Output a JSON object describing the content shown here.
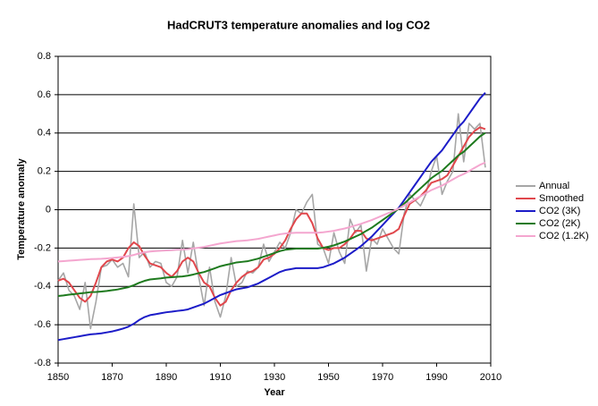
{
  "chart_data": {
    "type": "line",
    "title": "HadCRUT3 temperature anomalies and log CO2",
    "x_label": "Year",
    "y_label": "Temperature anomaly",
    "x": [
      1850,
      1852,
      1854,
      1856,
      1858,
      1860,
      1862,
      1864,
      1866,
      1868,
      1870,
      1872,
      1874,
      1876,
      1878,
      1880,
      1882,
      1884,
      1886,
      1888,
      1890,
      1892,
      1894,
      1896,
      1898,
      1900,
      1902,
      1904,
      1906,
      1908,
      1910,
      1912,
      1914,
      1916,
      1918,
      1920,
      1922,
      1924,
      1926,
      1928,
      1930,
      1932,
      1934,
      1936,
      1938,
      1940,
      1942,
      1944,
      1946,
      1948,
      1950,
      1952,
      1954,
      1956,
      1958,
      1960,
      1962,
      1964,
      1966,
      1968,
      1970,
      1972,
      1974,
      1976,
      1978,
      1980,
      1982,
      1984,
      1986,
      1988,
      1990,
      1992,
      1994,
      1996,
      1998,
      2000,
      2002,
      2004,
      2006,
      2008
    ],
    "series": [
      {
        "name": "Annual",
        "color": "#a6a6a6",
        "values": [
          -0.37,
          -0.33,
          -0.42,
          -0.45,
          -0.52,
          -0.38,
          -0.62,
          -0.48,
          -0.3,
          -0.29,
          -0.26,
          -0.3,
          -0.28,
          -0.35,
          0.03,
          -0.25,
          -0.22,
          -0.3,
          -0.27,
          -0.28,
          -0.38,
          -0.4,
          -0.35,
          -0.16,
          -0.33,
          -0.17,
          -0.35,
          -0.5,
          -0.3,
          -0.48,
          -0.56,
          -0.45,
          -0.25,
          -0.4,
          -0.38,
          -0.32,
          -0.33,
          -0.3,
          -0.18,
          -0.27,
          -0.22,
          -0.17,
          -0.2,
          -0.12,
          0.0,
          -0.02,
          0.04,
          0.08,
          -0.18,
          -0.2,
          -0.28,
          -0.12,
          -0.22,
          -0.28,
          -0.05,
          -0.12,
          -0.08,
          -0.32,
          -0.15,
          -0.18,
          -0.1,
          -0.15,
          -0.2,
          -0.23,
          -0.02,
          0.08,
          0.05,
          0.02,
          0.08,
          0.2,
          0.28,
          0.08,
          0.15,
          0.2,
          0.5,
          0.25,
          0.45,
          0.42,
          0.45,
          0.22
        ]
      },
      {
        "name": "Smoothed",
        "color": "#e0474c",
        "values": [
          -0.37,
          -0.36,
          -0.38,
          -0.42,
          -0.46,
          -0.48,
          -0.45,
          -0.38,
          -0.3,
          -0.27,
          -0.26,
          -0.27,
          -0.25,
          -0.2,
          -0.17,
          -0.19,
          -0.24,
          -0.28,
          -0.29,
          -0.3,
          -0.33,
          -0.35,
          -0.32,
          -0.27,
          -0.25,
          -0.27,
          -0.33,
          -0.38,
          -0.4,
          -0.46,
          -0.5,
          -0.48,
          -0.42,
          -0.38,
          -0.35,
          -0.33,
          -0.32,
          -0.3,
          -0.26,
          -0.25,
          -0.23,
          -0.2,
          -0.16,
          -0.1,
          -0.05,
          -0.02,
          -0.02,
          -0.07,
          -0.15,
          -0.2,
          -0.21,
          -0.2,
          -0.2,
          -0.18,
          -0.15,
          -0.11,
          -0.11,
          -0.15,
          -0.16,
          -0.15,
          -0.14,
          -0.13,
          -0.12,
          -0.1,
          -0.03,
          0.03,
          0.05,
          0.07,
          0.1,
          0.14,
          0.15,
          0.16,
          0.18,
          0.23,
          0.28,
          0.33,
          0.38,
          0.41,
          0.43,
          0.42
        ]
      },
      {
        "name": "CO2 (3K)",
        "color": "#1c1cc8",
        "values": [
          -0.68,
          -0.675,
          -0.67,
          -0.665,
          -0.66,
          -0.655,
          -0.65,
          -0.648,
          -0.645,
          -0.64,
          -0.635,
          -0.628,
          -0.62,
          -0.61,
          -0.595,
          -0.575,
          -0.56,
          -0.55,
          -0.545,
          -0.54,
          -0.535,
          -0.532,
          -0.528,
          -0.525,
          -0.52,
          -0.51,
          -0.5,
          -0.49,
          -0.475,
          -0.46,
          -0.445,
          -0.435,
          -0.425,
          -0.415,
          -0.41,
          -0.405,
          -0.395,
          -0.385,
          -0.37,
          -0.355,
          -0.34,
          -0.325,
          -0.315,
          -0.31,
          -0.305,
          -0.305,
          -0.305,
          -0.305,
          -0.305,
          -0.3,
          -0.29,
          -0.28,
          -0.265,
          -0.25,
          -0.23,
          -0.21,
          -0.19,
          -0.165,
          -0.14,
          -0.11,
          -0.08,
          -0.05,
          -0.02,
          0.01,
          0.05,
          0.09,
          0.13,
          0.17,
          0.21,
          0.25,
          0.28,
          0.31,
          0.35,
          0.39,
          0.43,
          0.46,
          0.5,
          0.54,
          0.58,
          0.61
        ]
      },
      {
        "name": "CO2 (2K)",
        "color": "#1e7a1e",
        "values": [
          -0.45,
          -0.447,
          -0.443,
          -0.44,
          -0.437,
          -0.434,
          -0.43,
          -0.429,
          -0.427,
          -0.424,
          -0.42,
          -0.416,
          -0.41,
          -0.404,
          -0.394,
          -0.381,
          -0.371,
          -0.364,
          -0.361,
          -0.358,
          -0.354,
          -0.352,
          -0.35,
          -0.348,
          -0.344,
          -0.338,
          -0.331,
          -0.325,
          -0.315,
          -0.305,
          -0.295,
          -0.288,
          -0.282,
          -0.275,
          -0.272,
          -0.269,
          -0.262,
          -0.255,
          -0.245,
          -0.236,
          -0.226,
          -0.216,
          -0.209,
          -0.206,
          -0.203,
          -0.203,
          -0.203,
          -0.203,
          -0.203,
          -0.199,
          -0.193,
          -0.186,
          -0.176,
          -0.166,
          -0.153,
          -0.14,
          -0.127,
          -0.11,
          -0.094,
          -0.074,
          -0.054,
          -0.034,
          -0.014,
          0.005,
          0.032,
          0.058,
          0.085,
          0.111,
          0.137,
          0.164,
          0.184,
          0.203,
          0.23,
          0.256,
          0.283,
          0.302,
          0.329,
          0.355,
          0.382,
          0.401
        ]
      },
      {
        "name": "CO2 (1.2K)",
        "color": "#f4a6cf",
        "values": [
          -0.27,
          -0.268,
          -0.266,
          -0.264,
          -0.262,
          -0.26,
          -0.258,
          -0.257,
          -0.256,
          -0.254,
          -0.252,
          -0.249,
          -0.246,
          -0.242,
          -0.236,
          -0.228,
          -0.222,
          -0.218,
          -0.216,
          -0.214,
          -0.212,
          -0.211,
          -0.209,
          -0.208,
          -0.206,
          -0.202,
          -0.198,
          -0.194,
          -0.188,
          -0.182,
          -0.176,
          -0.172,
          -0.168,
          -0.164,
          -0.162,
          -0.16,
          -0.156,
          -0.152,
          -0.146,
          -0.14,
          -0.134,
          -0.128,
          -0.124,
          -0.122,
          -0.12,
          -0.12,
          -0.12,
          -0.12,
          -0.12,
          -0.118,
          -0.114,
          -0.11,
          -0.104,
          -0.098,
          -0.09,
          -0.082,
          -0.074,
          -0.064,
          -0.054,
          -0.042,
          -0.03,
          -0.018,
          -0.006,
          0.006,
          0.022,
          0.038,
          0.054,
          0.07,
          0.086,
          0.102,
          0.114,
          0.126,
          0.142,
          0.158,
          0.174,
          0.186,
          0.202,
          0.218,
          0.234,
          0.246
        ]
      }
    ],
    "xlim": [
      1850,
      2010
    ],
    "xticks": [
      1850,
      1870,
      1890,
      1910,
      1930,
      1950,
      1970,
      1990,
      2010
    ],
    "ylim": [
      -0.8,
      0.8
    ],
    "yticks": [
      -0.8,
      -0.6,
      -0.4,
      -0.2,
      0,
      0.2,
      0.4,
      0.6,
      0.8
    ],
    "grid": true,
    "legend": "right"
  }
}
